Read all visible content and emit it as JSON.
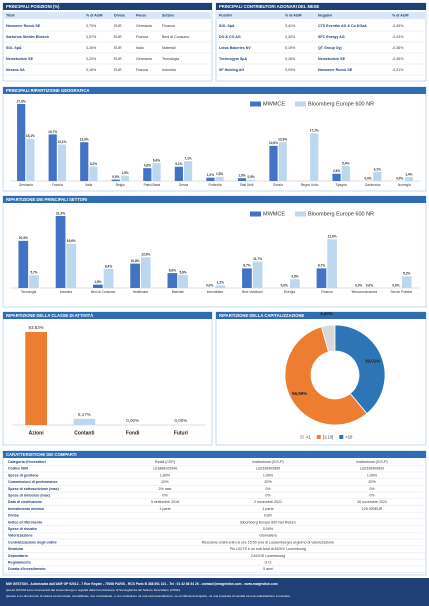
{
  "top_positions": {
    "title": "PRINCIPALI POSIZIONI (%)",
    "headers": [
      "Titoli",
      "% di AUM",
      "Divisa",
      "Paese",
      "Settore"
    ],
    "rows": [
      [
        "Hannover Rueck SE",
        "3,79%",
        "EUR",
        "Germania",
        "Finanza"
      ],
      [
        "Sartorius Stedim Biotech",
        "3,57%",
        "EUR",
        "Francia",
        "Beni di Consumo"
      ],
      [
        "SOL SpA",
        "3,26%",
        "EUR",
        "Italia",
        "Materiali"
      ],
      [
        "Nemetschek SE",
        "3,20%",
        "EUR",
        "Germania",
        "Tecnologia"
      ],
      [
        "Nexans SA",
        "3,16%",
        "EUR",
        "Francia",
        "Industria"
      ]
    ]
  },
  "contributors": {
    "title": "PRINCIPALI CONTRIBUTORI AZIONARI DEL MESE",
    "headers": [
      "Positivi",
      "% di AUM",
      "Negativi",
      "% di AUM"
    ],
    "rows": [
      [
        "SOL SpA",
        "0,41%",
        "CTS Eventim AG & Co KGaA",
        "-0,49%"
      ],
      [
        "DO & CO AG",
        "0,30%",
        "SFC Energy AG",
        "-0,43%"
      ],
      [
        "Lotus Bakeries NV",
        "0,19%",
        "QT Group Oyj",
        "-0,36%"
      ],
      [
        "Technogym SpA",
        "0,16%",
        "Nemetschek SE",
        "-0,35%"
      ],
      [
        "SF Holding AG",
        "0,09%",
        "Hannover Rueck SE",
        "-0,31%"
      ]
    ]
  },
  "chart_data": [
    {
      "type": "bar",
      "title": "PRINCIPALI RIPARTIZIONE GEOGRAFICA",
      "legend": "top-right",
      "categories": [
        "Germania",
        "Francia",
        "Italia",
        "Belgio",
        "Paesi Bassi",
        "Grecia",
        "Finlandia",
        "Stati Uniti",
        "Svezia",
        "Regno Unito",
        "Spagna",
        "Danimarca",
        "Norvegia"
      ],
      "series": [
        {
          "name": "MWMCE",
          "color": "#4472c4",
          "values": [
            27.6,
            16.7,
            13.9,
            0.5,
            4.6,
            5.1,
            1.2,
            1.0,
            12.6,
            null,
            2.6,
            0.0,
            0.0
          ],
          "value_labels": [
            "27,6%",
            "16,7%",
            "13,9%",
            "0,5%",
            "4,6%",
            "5,1%",
            "1,2%",
            "1,0%",
            "12,6%",
            null,
            "2,6%",
            "0,0%",
            "0,0%"
          ]
        },
        {
          "name": "Bloomberg Europe 600 NR",
          "color": "#bdd7ee",
          "values": [
            15.1,
            13.1,
            5.2,
            1.9,
            6.4,
            7.1,
            1.5,
            0.5,
            13.9,
            17.1,
            5.4,
            3.2,
            1.4
          ],
          "value_labels": [
            "15,1%",
            "13,1%",
            "5,2%",
            "1,9%",
            "6,4%",
            "7,1%",
            "1,5%",
            "0,5%",
            "13,9%",
            "17,1%",
            "5,4%",
            "3,2%",
            "1,4%"
          ]
        }
      ]
    },
    {
      "type": "bar",
      "title": "RIPARTIZIONE DEI PRINCIPALI SETTORI",
      "legend": "top-right",
      "categories": [
        "Tecnologia",
        "Industria",
        "Beni di Consumo",
        "Healthcare",
        "Materiali",
        "Immobiliare",
        "Beni Voluttuari",
        "Energia",
        "Finanza",
        "Telecomunicazioni",
        "Servizi Pubblici"
      ],
      "series": [
        {
          "name": "MWMCE",
          "color": "#4472c4",
          "values": [
            20.9,
            31.9,
            1.5,
            10.8,
            6.6,
            0.0,
            8.7,
            0.0,
            8.7,
            0.0,
            0.0
          ],
          "value_labels": [
            "20,9%",
            "31,9%",
            "1,5%",
            "10,8%",
            "6,6%",
            "0,0%",
            "8,7%",
            "0,0%",
            "8,7%",
            "0,0%",
            "0,0%"
          ]
        },
        {
          "name": "Bloomberg Europe 600 NR",
          "color": "#bdd7ee",
          "values": [
            5.7,
            19.6,
            8.4,
            13.6,
            5.8,
            1.2,
            11.7,
            3.9,
            21.6,
            0.0,
            5.2
          ],
          "value_labels": [
            "5,7%",
            "19,6%",
            "8,4%",
            "13,6%",
            "5,8%",
            "1,2%",
            "11,7%",
            "3,9%",
            "21,6%",
            "0,0%",
            "5,2%"
          ]
        }
      ]
    },
    {
      "type": "bar",
      "title": "RIPARTIZIONE DELLA CLASSE DI ATTIVITÀ",
      "categories": [
        "Azioni",
        "Contanti",
        "Fondi",
        "Futuri"
      ],
      "values": [
        93.83,
        6.17,
        0.0,
        0.0
      ],
      "value_labels": [
        "93,83%",
        "6,17%",
        "0,00%",
        "0,00%"
      ],
      "colors": [
        "#ed7d31",
        "#bdd7ee",
        "#bdd7ee",
        "#bdd7ee"
      ]
    },
    {
      "type": "pie",
      "donut": true,
      "title": "RIPARTIZIONE DELLA CAPITALIZZAZIONE",
      "legend": "bottom",
      "categories": [
        "<1",
        "[1;10]",
        ">10"
      ],
      "values": [
        4.4,
        56.59,
        39.01
      ],
      "value_labels": [
        "4,40%",
        "56,59%",
        "39,01%"
      ],
      "colors": [
        "#d9d9d9",
        "#ed7d31",
        "#2e75b6"
      ]
    }
  ],
  "characteristics": {
    "title": "CARATTERISTICHE DEI COMPARTI",
    "rows": [
      [
        "Categoria d'investitori",
        "Retail (CEP)",
        "Institutional (CIS-P)",
        "Institutional (CIS-P)"
      ],
      [
        "Codice ISIN",
        "LU1868102540",
        "LU2336902865",
        "LU2336900820"
      ],
      [
        "Spese di gestione",
        "1,80%",
        "1,00%",
        "1,00%"
      ],
      [
        "Commissioni di performance",
        "20%",
        "20%",
        "20%"
      ],
      [
        "Spese di sottoscrizione (max)",
        "2% max",
        "0%",
        "0%"
      ],
      [
        "Spese di rimborso (max)",
        "0%",
        "0%",
        "0%"
      ],
      [
        "Data di costituzione",
        "5 settembre 2018",
        "2 novembre 2021",
        "30 novembre 2021"
      ],
      [
        "Investimento minimo",
        "1 parte",
        "1 parte",
        "125 000EUR"
      ],
      [
        "Divisa",
        "EUR"
      ],
      [
        "Indice di riferimento",
        "Bloomberg Europe 600 Net Return"
      ],
      [
        "Spese di riscatto",
        "0,00%"
      ],
      [
        "Valorizzazione",
        "Giornaliera"
      ],
      [
        "Centralizzazione degli ordini",
        "Ricezione ordini entro le ore 15:00 (ora di Lussemburgo) al giorno di valorizzazione"
      ],
      [
        "Struttura",
        "Più UCITS è un sub-fund di MCKV Luxembourg"
      ],
      [
        "Depositario",
        "CACEIS Luxembourg"
      ],
      [
        "Regolamento",
        "G+2"
      ],
      [
        "Durata d'investimento",
        "5 anni"
      ]
    ]
  },
  "footer": {
    "lines": [
      "MW GESTION - Autorizzata dall'AMF GP 92012 - 7 Rue Royale - 75008 PARIS - RCS Paris B 388 891 321 - Tel : 01 42 86 54 26 - contact@mwgestion.com - www.mwgestion.com",
      "Questi OICVM sono riconosciuti dal Lussemburgo e regolati dalla Commissione di Sorveglianza del Settore Finanziario (CSSF).",
      "Questo è un documento di natura commerciale, semplificato, non contrattuale, e non costituisce né una raccomandazione, né un'offerta di acquisto, né una proposta di vendita né una sollecitazione a investire."
    ]
  }
}
